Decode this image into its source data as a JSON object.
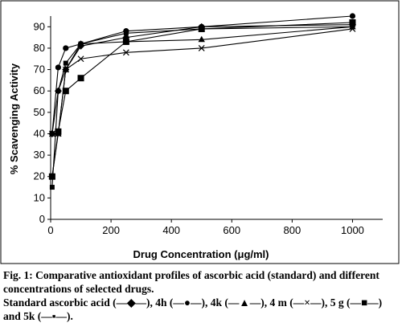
{
  "chart_data": {
    "type": "line",
    "xlabel": "Drug Concentration (μg/ml)",
    "ylabel": "% Scavenging Activity",
    "xlim": [
      0,
      1100
    ],
    "ylim": [
      0,
      95
    ],
    "x_ticks": [
      0,
      200,
      400,
      600,
      800,
      1000
    ],
    "y_ticks": [
      0,
      10,
      20,
      30,
      40,
      50,
      60,
      70,
      80,
      90
    ],
    "grid": false,
    "legend": "none",
    "series": [
      {
        "name": "Standard ascorbic acid",
        "marker": "diamond",
        "x": [
          5,
          25,
          50,
          100,
          250,
          500,
          1000
        ],
        "y": [
          40,
          60,
          70,
          81,
          85,
          90,
          91
        ]
      },
      {
        "name": "4h",
        "marker": "circle",
        "x": [
          5,
          25,
          50,
          100,
          250,
          500,
          1000
        ],
        "y": [
          40,
          71,
          80,
          82,
          88,
          90,
          95
        ]
      },
      {
        "name": "4k",
        "marker": "triangle",
        "x": [
          5,
          25,
          50,
          100,
          250,
          500,
          1000
        ],
        "y": [
          20,
          40,
          70,
          82,
          83,
          84,
          90
        ]
      },
      {
        "name": "4 m",
        "marker": "x",
        "x": [
          5,
          25,
          50,
          100,
          250,
          500,
          1000
        ],
        "y": [
          40,
          40,
          70,
          75,
          78,
          80,
          89
        ]
      },
      {
        "name": "5 g",
        "marker": "square",
        "x": [
          5,
          25,
          50,
          100,
          250,
          500,
          1000
        ],
        "y": [
          20,
          41,
          60,
          66,
          83,
          89,
          92
        ]
      },
      {
        "name": "5k",
        "marker": "small-square",
        "x": [
          5,
          25,
          50,
          100,
          250,
          500,
          1000
        ],
        "y": [
          15,
          60,
          73,
          82,
          87,
          89,
          90
        ]
      }
    ]
  },
  "caption": {
    "fig_label": "Fig. 1:",
    "fig_text": " Comparative antioxidant profiles of ascorbic acid (standard) and different concentrations of selected drugs.",
    "legend_text": "Standard ascorbic acid (—◆—), 4h (—●—), 4k (—▲—), 4 m (—×—), 5 g (—■—) and 5k (—▪—)."
  }
}
